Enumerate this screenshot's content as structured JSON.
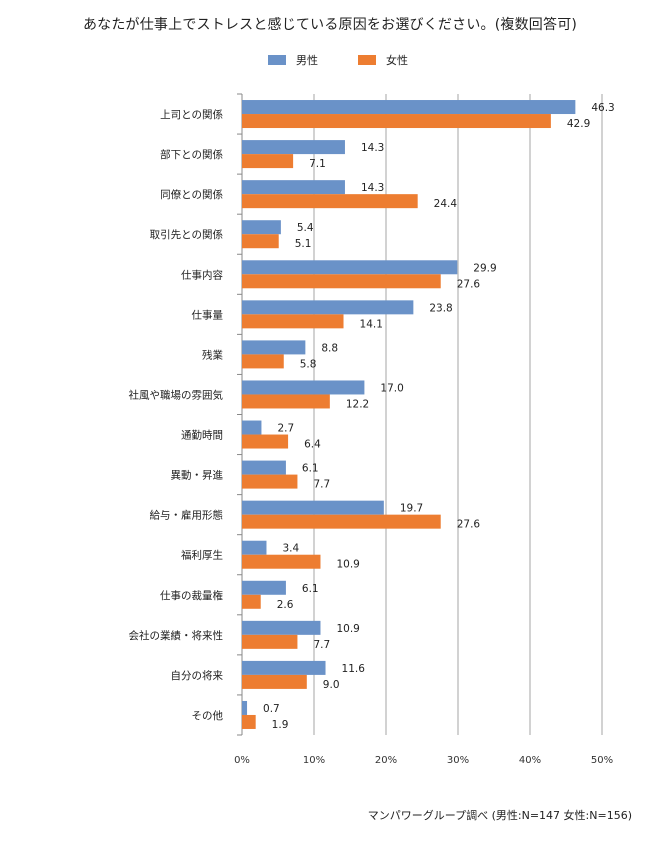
{
  "title": "あなたが仕事上でストレスと感じている原因をお選びください。(複数回答可)",
  "source": "マンパワーグループ調べ (男性:N=147 女性:N=156)",
  "colors": {
    "male": "#6a92c8",
    "female": "#ed7d31",
    "grid": "#a6a6a6",
    "axis": "#888888"
  },
  "chart_data": {
    "type": "bar",
    "orientation": "horizontal",
    "title": "あなたが仕事上でストレスと感じている原因をお選びください。(複数回答可)",
    "categories": [
      "上司との関係",
      "部下との関係",
      "同僚との関係",
      "取引先との関係",
      "仕事内容",
      "仕事量",
      "残業",
      "社風や職場の雰囲気",
      "通勤時間",
      "異動・昇進",
      "給与・雇用形態",
      "福利厚生",
      "仕事の裁量権",
      "会社の業績・将来性",
      "自分の将来",
      "その他"
    ],
    "series": [
      {
        "name": "男性",
        "values": [
          46.3,
          14.3,
          14.3,
          5.4,
          29.9,
          23.8,
          8.8,
          17.0,
          2.7,
          6.1,
          19.7,
          3.4,
          6.1,
          10.9,
          11.6,
          0.7
        ]
      },
      {
        "name": "女性",
        "values": [
          42.9,
          7.1,
          24.4,
          5.1,
          27.6,
          14.1,
          5.8,
          12.2,
          6.4,
          7.7,
          27.6,
          10.9,
          2.6,
          7.7,
          9.0,
          1.9
        ]
      }
    ],
    "xticks": [
      "0%",
      "10%",
      "20%",
      "30%",
      "40%",
      "50%"
    ],
    "xlim": [
      0,
      50
    ],
    "unit": "%",
    "grid": true,
    "legend": "top-center"
  }
}
